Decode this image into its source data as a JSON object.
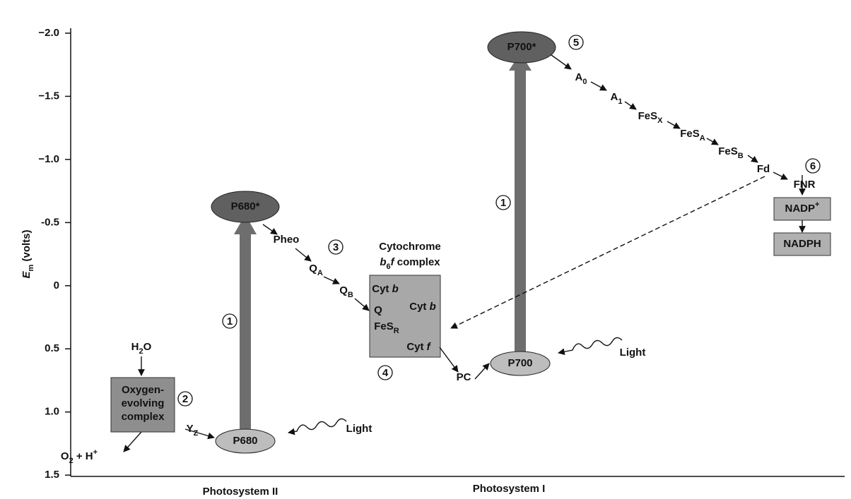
{
  "axis": {
    "label": [
      {
        "italic": "E"
      },
      {
        "sub": "m"
      },
      {
        "text": " (volts)"
      }
    ],
    "ticks": [
      {
        "value": -2.0,
        "label": "−2.0"
      },
      {
        "value": -1.5,
        "label": "−1.5"
      },
      {
        "value": -1.0,
        "label": "−1.0"
      },
      {
        "value": -0.5,
        "label": "-0.5"
      },
      0,
      0.5,
      {
        "value": 1.0,
        "label": "1.0"
      },
      {
        "value": 1.5,
        "label": "1.5"
      }
    ]
  },
  "items": [
    {
      "parts": [
        {
          "text": "P680*"
        }
      ]
    },
    {
      "parts": [
        {
          "text": "P680"
        }
      ]
    },
    {
      "parts": [
        {
          "text": "Pheo"
        }
      ]
    },
    {
      "parts": [
        {
          "text": "Q"
        },
        {
          "sub": "A"
        }
      ]
    },
    {
      "parts": [
        {
          "text": "Q"
        },
        {
          "sub": "B"
        }
      ]
    },
    {
      "parts": [
        {
          "text": "Cytochrome"
        }
      ]
    },
    {
      "parts": [
        {
          "italic": "b"
        },
        {
          "sub": "6"
        },
        {
          "italic": "f"
        },
        {
          "text": " complex"
        }
      ]
    },
    {
      "parts": [
        {
          "text": "Cyt "
        },
        {
          "italic": "b"
        }
      ]
    },
    {
      "parts": [
        {
          "text": "Cyt "
        },
        {
          "italic": "b"
        }
      ]
    },
    {
      "parts": [
        {
          "text": "Q"
        }
      ]
    },
    {
      "parts": [
        {
          "text": "FeS"
        },
        {
          "sub": "R"
        }
      ]
    },
    {
      "parts": [
        {
          "text": "Cyt "
        },
        {
          "italic": "f"
        }
      ]
    },
    {
      "parts": [
        {
          "text": "PC"
        }
      ]
    },
    {
      "parts": [
        {
          "text": "P700"
        }
      ]
    },
    {
      "parts": [
        {
          "text": "P700*"
        }
      ]
    },
    {
      "parts": [
        {
          "text": "A"
        },
        {
          "sub": "0"
        }
      ]
    },
    {
      "parts": [
        {
          "text": "A"
        },
        {
          "sub": "1"
        }
      ]
    },
    {
      "parts": [
        {
          "text": "FeS"
        },
        {
          "sub": "X"
        }
      ]
    },
    {
      "parts": [
        {
          "text": "FeS"
        },
        {
          "sub": "A"
        }
      ]
    },
    {
      "parts": [
        {
          "text": "FeS"
        },
        {
          "sub": "B"
        }
      ]
    },
    {
      "parts": [
        {
          "text": "Fd"
        }
      ]
    },
    {
      "parts": [
        {
          "text": "FNR"
        }
      ]
    },
    {
      "parts": [
        {
          "text": "NADP"
        },
        {
          "sup": "+"
        }
      ]
    },
    {
      "parts": [
        {
          "text": "NADPH"
        }
      ]
    },
    {
      "parts": [
        {
          "text": "H"
        },
        {
          "sub": "2"
        },
        {
          "text": "O"
        }
      ]
    },
    {
      "parts": [
        {
          "text": "Oxygen-"
        }
      ]
    },
    {
      "parts": [
        {
          "text": "evolving"
        }
      ]
    },
    {
      "parts": [
        {
          "text": "complex"
        }
      ]
    },
    {
      "parts": [
        {
          "text": "Y"
        },
        {
          "sub": "Z"
        }
      ]
    },
    {
      "parts": [
        {
          "text": "O"
        },
        {
          "sub": "2"
        },
        {
          "text": " + H"
        },
        {
          "sup": "+"
        }
      ]
    },
    {
      "parts": [
        {
          "text": "Light"
        }
      ]
    },
    {
      "parts": [
        {
          "text": "Light"
        }
      ]
    },
    {
      "parts": [
        {
          "text": "Photosystem II"
        }
      ]
    },
    {
      "parts": [
        {
          "text": "Photosystem I"
        }
      ]
    }
  ],
  "steps": [
    "1",
    "1",
    "2",
    "3",
    "4",
    "5",
    "6"
  ]
}
